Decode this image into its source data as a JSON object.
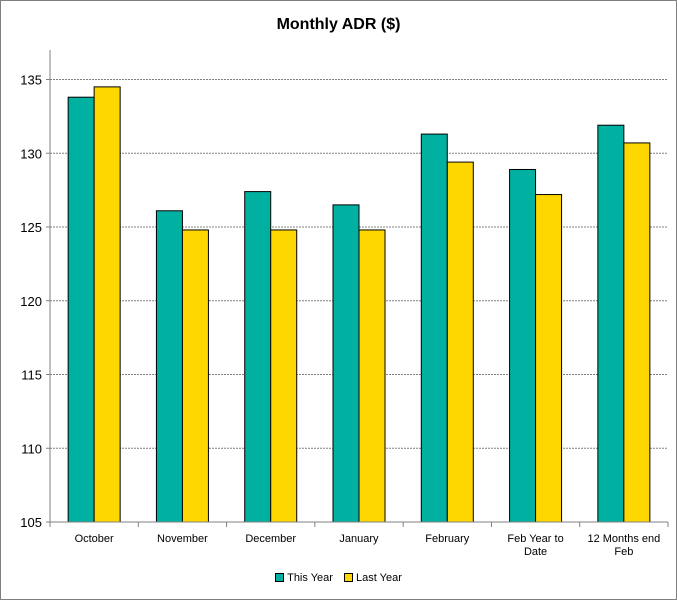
{
  "chart_data": {
    "type": "bar",
    "title": "Monthly ADR ($)",
    "categories": [
      "October",
      "November",
      "December",
      "January",
      "February",
      "Feb Year to Date",
      "12 Months end Feb"
    ],
    "category_lines": [
      [
        "October"
      ],
      [
        "November"
      ],
      [
        "December"
      ],
      [
        "January"
      ],
      [
        "February"
      ],
      [
        "Feb Year to",
        "Date"
      ],
      [
        "12 Months end",
        "Feb"
      ]
    ],
    "series": [
      {
        "name": "This Year",
        "color": "#00b0a0",
        "values": [
          133.8,
          126.1,
          127.4,
          126.5,
          131.3,
          128.9,
          131.9
        ]
      },
      {
        "name": "Last Year",
        "color": "#ffd700",
        "values": [
          134.5,
          124.8,
          124.8,
          124.8,
          129.4,
          127.2,
          130.7
        ]
      }
    ],
    "yticks": [
      105,
      110,
      115,
      120,
      125,
      130,
      135
    ],
    "ylim": [
      105,
      137
    ],
    "grid": "horizontal dashed",
    "legend_position": "bottom",
    "xlabel": "",
    "ylabel": ""
  }
}
